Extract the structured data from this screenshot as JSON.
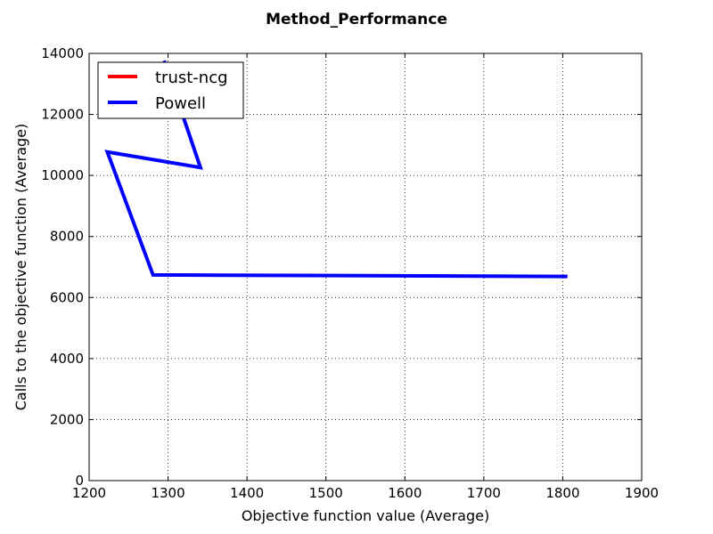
{
  "chart_data": {
    "type": "line",
    "title": "Method_Performance",
    "xlabel": "Objective function value (Average)",
    "ylabel": "Calls to the objective function (Average)",
    "xlim": [
      1200,
      1900
    ],
    "ylim": [
      0,
      14000
    ],
    "xticks": [
      "1200",
      "1300",
      "1400",
      "1500",
      "1600",
      "1700",
      "1800",
      "1900"
    ],
    "yticks": [
      "0",
      "2000",
      "4000",
      "6000",
      "8000",
      "10000",
      "12000",
      "14000"
    ],
    "grid": true,
    "legend_position": "top-left",
    "series": [
      {
        "name": "trust-ncg",
        "color": "#ff0000",
        "points": []
      },
      {
        "name": "Powell",
        "color": "#0000ff",
        "points": [
          [
            1806,
            6690
          ],
          [
            1281,
            6740
          ],
          [
            1223,
            10770
          ],
          [
            1341,
            10260
          ],
          [
            1311,
            12550
          ],
          [
            1295,
            13760
          ]
        ]
      }
    ]
  }
}
